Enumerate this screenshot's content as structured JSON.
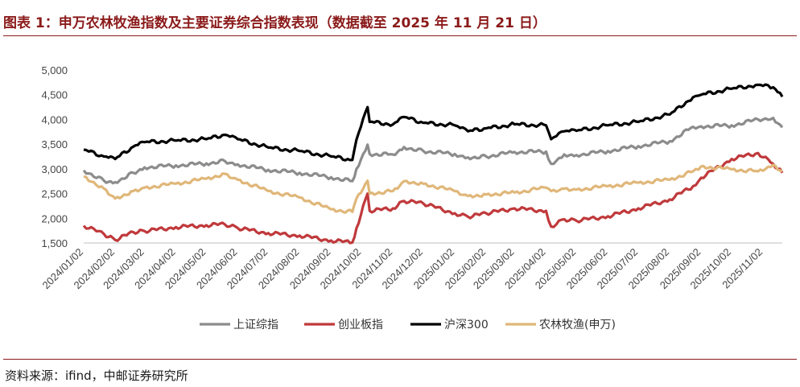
{
  "figure": {
    "title": "图表 1：申万农林牧渔指数及主要证券综合指数表现（数据截至 2025 年 11 月 21 日）",
    "source": "资料来源：ifind，中邮证券研究所"
  },
  "chart_data": {
    "type": "line",
    "title": "",
    "xlabel": "",
    "ylabel": "",
    "ylim": [
      1500,
      5000
    ],
    "yticks": [
      "1,500",
      "2,000",
      "2,500",
      "3,000",
      "3,500",
      "4,000",
      "4,500",
      "5,000"
    ],
    "ytick_values": [
      1500,
      2000,
      2500,
      3000,
      3500,
      4000,
      4500,
      5000
    ],
    "xticks": [
      "2024/01/02",
      "2024/02/02",
      "2024/03/02",
      "2024/04/02",
      "2024/05/02",
      "2024/06/02",
      "2024/07/02",
      "2024/08/02",
      "2024/09/02",
      "2024/10/02",
      "2024/11/02",
      "2024/12/02",
      "2025/01/02",
      "2025/02/02",
      "2025/03/02",
      "2025/04/02",
      "2025/05/02",
      "2025/06/02",
      "2025/07/02",
      "2025/08/02",
      "2025/09/02",
      "2025/10/02",
      "2025/11/02"
    ],
    "x_end": "2025/11/21",
    "grid": false,
    "legend_position": "bottom",
    "series": [
      {
        "name": "上证综指",
        "color": "#8c8c8c",
        "points": [
          [
            "2024/01/02",
            2970
          ],
          [
            "2024/01/22",
            2760
          ],
          [
            "2024/02/02",
            2730
          ],
          [
            "2024/02/20",
            2920
          ],
          [
            "2024/03/02",
            3030
          ],
          [
            "2024/04/02",
            3070
          ],
          [
            "2024/05/02",
            3110
          ],
          [
            "2024/05/20",
            3160
          ],
          [
            "2024/06/02",
            3090
          ],
          [
            "2024/07/02",
            2980
          ],
          [
            "2024/08/02",
            2920
          ],
          [
            "2024/09/02",
            2830
          ],
          [
            "2024/09/23",
            2750
          ],
          [
            "2024/09/27",
            3000
          ],
          [
            "2024/10/08",
            3490
          ],
          [
            "2024/10/10",
            3300
          ],
          [
            "2024/11/02",
            3290
          ],
          [
            "2024/11/13",
            3440
          ],
          [
            "2024/12/02",
            3360
          ],
          [
            "2025/01/02",
            3300
          ],
          [
            "2025/01/15",
            3230
          ],
          [
            "2025/02/02",
            3250
          ],
          [
            "2025/03/02",
            3340
          ],
          [
            "2025/04/02",
            3350
          ],
          [
            "2025/04/07",
            3100
          ],
          [
            "2025/04/20",
            3290
          ],
          [
            "2025/05/02",
            3280
          ],
          [
            "2025/06/02",
            3360
          ],
          [
            "2025/07/02",
            3460
          ],
          [
            "2025/08/02",
            3560
          ],
          [
            "2025/08/25",
            3850
          ],
          [
            "2025/09/02",
            3860
          ],
          [
            "2025/10/02",
            3880
          ],
          [
            "2025/10/28",
            4000
          ],
          [
            "2025/11/12",
            4030
          ],
          [
            "2025/11/21",
            3840
          ]
        ]
      },
      {
        "name": "创业板指",
        "color": "#c0393b",
        "points": [
          [
            "2024/01/02",
            1850
          ],
          [
            "2024/01/22",
            1680
          ],
          [
            "2024/02/02",
            1560
          ],
          [
            "2024/02/20",
            1720
          ],
          [
            "2024/03/02",
            1740
          ],
          [
            "2024/04/02",
            1820
          ],
          [
            "2024/05/02",
            1860
          ],
          [
            "2024/05/20",
            1880
          ],
          [
            "2024/06/02",
            1800
          ],
          [
            "2024/07/02",
            1700
          ],
          [
            "2024/08/02",
            1650
          ],
          [
            "2024/09/02",
            1550
          ],
          [
            "2024/09/23",
            1510
          ],
          [
            "2024/09/27",
            1800
          ],
          [
            "2024/10/08",
            2500
          ],
          [
            "2024/10/10",
            2150
          ],
          [
            "2024/11/02",
            2200
          ],
          [
            "2024/11/13",
            2350
          ],
          [
            "2024/12/02",
            2300
          ],
          [
            "2025/01/02",
            2100
          ],
          [
            "2025/01/15",
            2030
          ],
          [
            "2025/02/02",
            2100
          ],
          [
            "2025/03/02",
            2200
          ],
          [
            "2025/04/02",
            2150
          ],
          [
            "2025/04/07",
            1830
          ],
          [
            "2025/04/20",
            1980
          ],
          [
            "2025/05/02",
            1950
          ],
          [
            "2025/06/02",
            2040
          ],
          [
            "2025/07/02",
            2200
          ],
          [
            "2025/08/02",
            2380
          ],
          [
            "2025/08/25",
            2650
          ],
          [
            "2025/09/02",
            2820
          ],
          [
            "2025/10/02",
            3200
          ],
          [
            "2025/10/28",
            3320
          ],
          [
            "2025/11/12",
            3100
          ],
          [
            "2025/11/21",
            2920
          ]
        ]
      },
      {
        "name": "沪深300",
        "color": "#000000",
        "points": [
          [
            "2024/01/02",
            3390
          ],
          [
            "2024/01/22",
            3250
          ],
          [
            "2024/02/02",
            3200
          ],
          [
            "2024/02/20",
            3450
          ],
          [
            "2024/03/02",
            3540
          ],
          [
            "2024/04/02",
            3570
          ],
          [
            "2024/05/02",
            3600
          ],
          [
            "2024/05/20",
            3690
          ],
          [
            "2024/06/02",
            3600
          ],
          [
            "2024/07/02",
            3430
          ],
          [
            "2024/08/02",
            3360
          ],
          [
            "2024/09/02",
            3250
          ],
          [
            "2024/09/23",
            3180
          ],
          [
            "2024/09/27",
            3590
          ],
          [
            "2024/10/08",
            4250
          ],
          [
            "2024/10/10",
            3950
          ],
          [
            "2024/11/02",
            3900
          ],
          [
            "2024/11/13",
            4050
          ],
          [
            "2024/12/02",
            3930
          ],
          [
            "2025/01/02",
            3880
          ],
          [
            "2025/01/15",
            3760
          ],
          [
            "2025/02/02",
            3820
          ],
          [
            "2025/03/02",
            3900
          ],
          [
            "2025/04/02",
            3880
          ],
          [
            "2025/04/07",
            3600
          ],
          [
            "2025/04/20",
            3760
          ],
          [
            "2025/05/02",
            3770
          ],
          [
            "2025/06/02",
            3880
          ],
          [
            "2025/07/02",
            3950
          ],
          [
            "2025/08/02",
            4100
          ],
          [
            "2025/08/25",
            4450
          ],
          [
            "2025/09/02",
            4500
          ],
          [
            "2025/10/02",
            4620
          ],
          [
            "2025/10/28",
            4700
          ],
          [
            "2025/11/12",
            4650
          ],
          [
            "2025/11/21",
            4460
          ]
        ]
      },
      {
        "name": "农林牧渔(申万)",
        "color": "#e0b77a",
        "points": [
          [
            "2024/01/02",
            2850
          ],
          [
            "2024/01/22",
            2600
          ],
          [
            "2024/02/02",
            2400
          ],
          [
            "2024/02/20",
            2550
          ],
          [
            "2024/03/02",
            2620
          ],
          [
            "2024/04/02",
            2700
          ],
          [
            "2024/05/02",
            2800
          ],
          [
            "2024/05/20",
            2900
          ],
          [
            "2024/06/02",
            2780
          ],
          [
            "2024/07/02",
            2550
          ],
          [
            "2024/08/02",
            2420
          ],
          [
            "2024/09/02",
            2180
          ],
          [
            "2024/09/23",
            2130
          ],
          [
            "2024/09/27",
            2400
          ],
          [
            "2024/10/08",
            2760
          ],
          [
            "2024/10/10",
            2500
          ],
          [
            "2024/11/02",
            2550
          ],
          [
            "2024/11/13",
            2750
          ],
          [
            "2024/12/02",
            2700
          ],
          [
            "2025/01/02",
            2550
          ],
          [
            "2025/01/15",
            2450
          ],
          [
            "2025/02/02",
            2480
          ],
          [
            "2025/03/02",
            2520
          ],
          [
            "2025/04/02",
            2620
          ],
          [
            "2025/04/07",
            2550
          ],
          [
            "2025/04/20",
            2600
          ],
          [
            "2025/05/02",
            2580
          ],
          [
            "2025/06/02",
            2650
          ],
          [
            "2025/07/02",
            2720
          ],
          [
            "2025/08/02",
            2780
          ],
          [
            "2025/08/25",
            2950
          ],
          [
            "2025/09/02",
            3050
          ],
          [
            "2025/10/02",
            2990
          ],
          [
            "2025/10/28",
            2950
          ],
          [
            "2025/11/12",
            3080
          ],
          [
            "2025/11/21",
            2950
          ]
        ]
      }
    ]
  }
}
